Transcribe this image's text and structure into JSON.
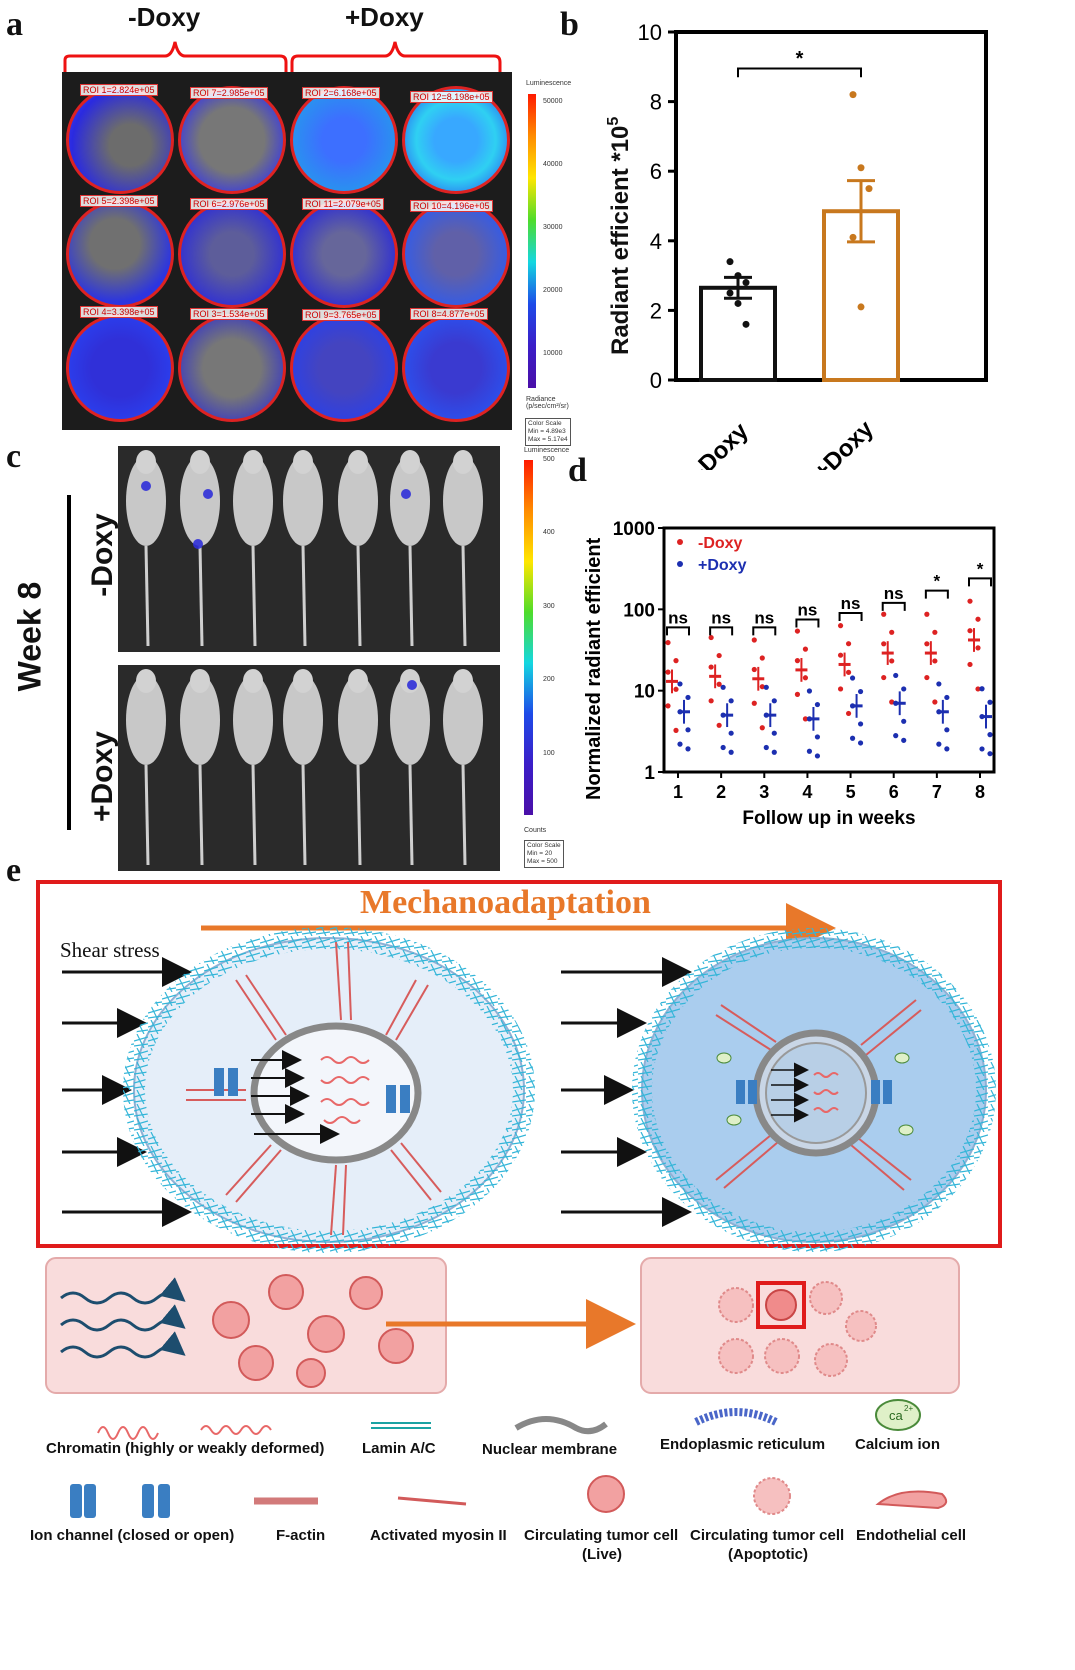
{
  "panels": {
    "a": {
      "letter": "a",
      "groups": [
        "-Doxy",
        "+Doxy"
      ],
      "rois": [
        "ROI 1=2.824e+05",
        "ROI 7=2.985e+05",
        "ROI 2=6.168e+05",
        "ROI 12=8.198e+05",
        "ROI 5=2.398e+05",
        "ROI 6=2.976e+05",
        "ROI 11=2.079e+05",
        "ROI 10=4.196e+05",
        "ROI 4=3.398e+05",
        "ROI 3=1.534e+05",
        "ROI 9=3.765e+05",
        "ROI 8=4.877e+05"
      ],
      "colorbar": {
        "title": "Luminescence",
        "ticks": [
          "50000",
          "40000",
          "30000",
          "20000",
          "10000"
        ],
        "unit_label": "Radiance (p/sec/cm²/sr)",
        "scale": [
          "Color Scale",
          "Min = 4.89e3",
          "Max = 5.17e4"
        ]
      }
    },
    "b": {
      "letter": "b",
      "ylabel": "Radiant efficient *10",
      "ylabel_exp": "5",
      "significance": "*",
      "colors": {
        "minus": "#111111",
        "plus": "#c8781e"
      }
    },
    "c": {
      "letter": "c",
      "week_label": "Week 8",
      "groups": [
        "-Doxy",
        "+Doxy"
      ],
      "colorbar": {
        "title": "Luminescence",
        "ticks": [
          "500",
          "400",
          "300",
          "200",
          "100"
        ],
        "unit_label": "Counts",
        "scale": [
          "Color Scale",
          "Min = 20",
          "Max = 500"
        ]
      }
    },
    "d": {
      "letter": "d",
      "legend": [
        "-Doxy",
        "+Doxy"
      ],
      "sig": [
        "ns",
        "ns",
        "ns",
        "ns",
        "ns",
        "ns",
        "*",
        "*"
      ],
      "colors": {
        "minus": "#dd2222",
        "plus": "#1c2fb0"
      }
    },
    "e": {
      "letter": "e",
      "title": "Mechanoadaptation",
      "shear_label": "Shear stress",
      "calcium_glyph": "ca",
      "calcium_sup": "2+",
      "legend_row1": [
        "Chromatin (highly or weakly deformed)",
        "Lamin A/C",
        "Nuclear membrane",
        "Endoplasmic reticulum",
        "Calcium ion"
      ],
      "legend_row2": [
        "Ion channel (closed or open)",
        "F-actin",
        "Activated myosin II",
        "Circulating tumor cell",
        "Circulating tumor cell",
        "Endothelial cell"
      ],
      "legend_row2_sub": [
        "(Live)",
        "(Apoptotic)"
      ]
    }
  },
  "chart_data": [
    {
      "type": "bar",
      "categories": [
        "-Doxy",
        "+Doxy"
      ],
      "values": [
        2.65,
        4.85
      ],
      "errors": [
        0.3,
        0.88
      ],
      "points": [
        [
          3.4,
          3.0,
          2.8,
          2.5,
          2.2,
          1.6
        ],
        [
          8.2,
          6.1,
          5.5,
          4.1,
          2.1
        ]
      ],
      "ylabel": "Radiant efficient *10^5",
      "yticks": [
        0,
        2,
        4,
        6,
        8,
        10
      ],
      "ylim": [
        0,
        10
      ],
      "annotation": "*"
    },
    {
      "type": "scatter",
      "ylabel": "Normalized radiant efficient",
      "xlabel": "Follow up in weeks",
      "x": [
        1,
        2,
        3,
        4,
        5,
        6,
        7,
        8
      ],
      "ylim": [
        1,
        1000
      ],
      "yscale": "log",
      "yticks": [
        "1",
        "10",
        "100",
        "1000"
      ],
      "series": [
        {
          "name": "-Doxy",
          "mean": [
            13,
            15,
            14,
            18,
            21,
            29,
            29,
            42
          ]
        },
        {
          "name": "+Doxy",
          "mean": [
            5.5,
            5,
            5,
            4.5,
            6.5,
            7,
            5.5,
            4.8
          ]
        }
      ],
      "significance": [
        "ns",
        "ns",
        "ns",
        "ns",
        "ns",
        "ns",
        "*",
        "*"
      ]
    }
  ]
}
